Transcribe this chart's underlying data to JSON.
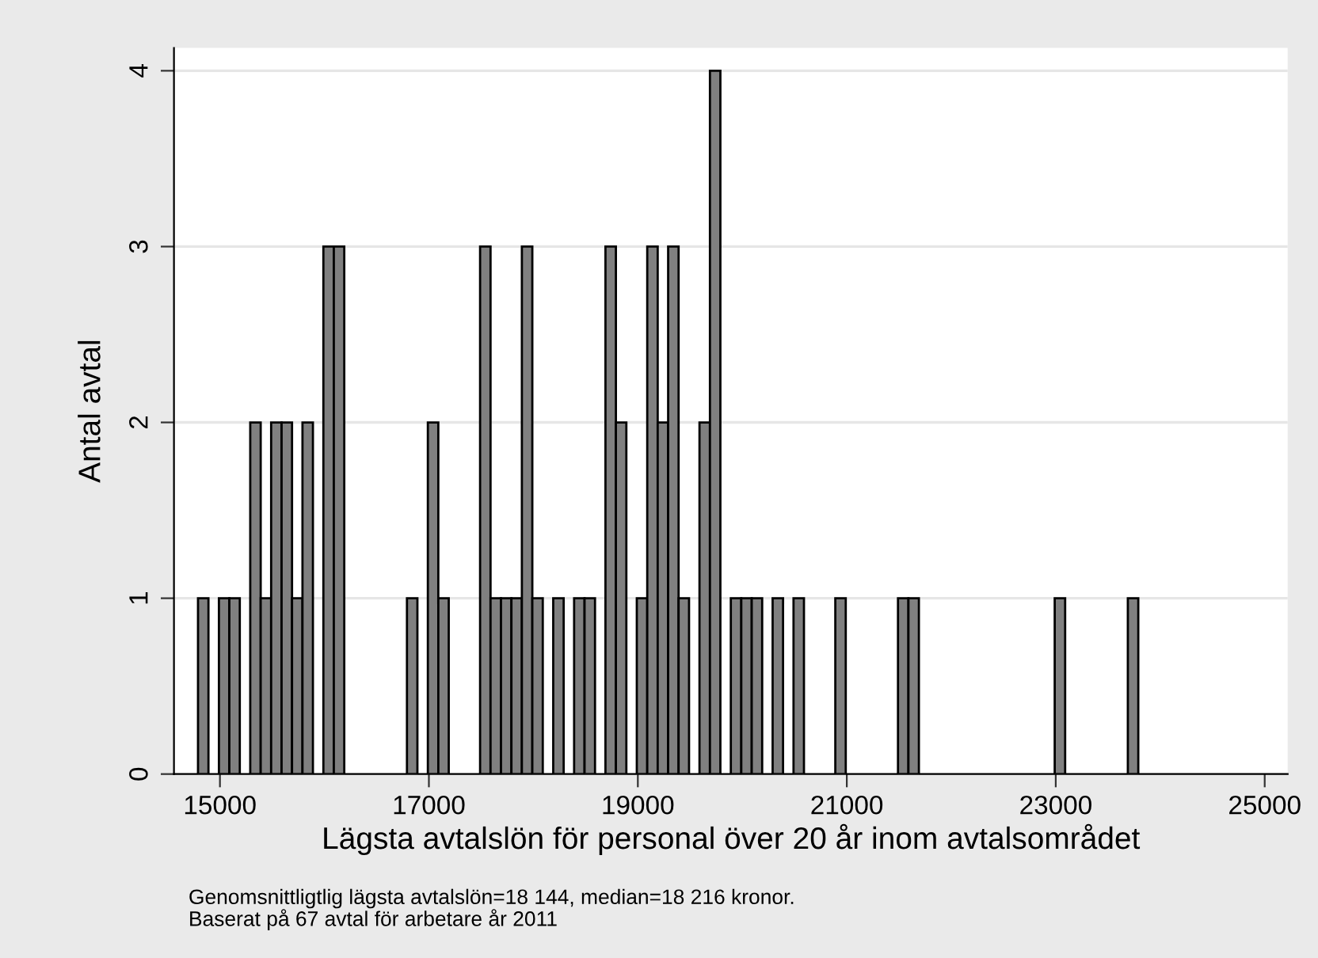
{
  "chart_data": {
    "type": "histogram",
    "xlabel": "Lägsta avtalslön för personal över 20 år inom avtalsområdet",
    "ylabel": "Antal avtal",
    "bins": [
      14790,
      14890,
      14990,
      15090,
      15190,
      15290,
      15390,
      15490,
      15590,
      15690,
      15790,
      15890,
      15990,
      16090,
      16190,
      16290,
      16390,
      16490,
      16590,
      16690,
      16790,
      16890,
      16990,
      17090,
      17190,
      17290,
      17390,
      17490,
      17590,
      17690,
      17790,
      17890,
      17990,
      18090,
      18190,
      18290,
      18390,
      18490,
      18590,
      18690,
      18790,
      18890,
      18990,
      19090,
      19190,
      19290,
      19390,
      19490,
      19590,
      19690,
      19790,
      19890,
      19990,
      20090,
      20190,
      20290,
      20390,
      20490,
      20590,
      20690,
      20790,
      20890,
      20990,
      21090,
      21190,
      21290,
      21390,
      21490,
      21590,
      21690,
      21790,
      21890,
      21990,
      22090,
      22190,
      22290,
      22390,
      22490,
      22590,
      22690,
      22790,
      22890,
      22990,
      23090,
      23190,
      23290,
      23390,
      23490,
      23590,
      23690,
      23790
    ],
    "values": [
      1,
      0,
      1,
      1,
      0,
      2,
      1,
      2,
      2,
      1,
      2,
      0,
      3,
      3,
      0,
      0,
      0,
      0,
      0,
      0,
      1,
      0,
      2,
      1,
      0,
      0,
      0,
      3,
      1,
      1,
      1,
      3,
      1,
      0,
      1,
      0,
      1,
      1,
      0,
      3,
      2,
      0,
      1,
      3,
      2,
      3,
      1,
      0,
      2,
      4,
      0,
      1,
      1,
      1,
      0,
      1,
      0,
      1,
      0,
      0,
      0,
      1,
      0,
      0,
      0,
      0,
      0,
      1,
      1,
      0,
      0,
      0,
      0,
      0,
      0,
      0,
      0,
      0,
      0,
      0,
      0,
      0,
      1,
      0,
      0,
      0,
      0,
      0,
      0,
      1
    ],
    "color": "#808080",
    "xlim": [
      14560,
      25220
    ],
    "xticks": [
      15000,
      17000,
      19000,
      21000,
      23000,
      25000
    ],
    "ylim": [
      0,
      4.13
    ],
    "yticks": [
      0,
      1,
      2,
      3,
      4
    ],
    "grid": "y",
    "annotations": [
      "Genomsnittligtlig lägsta avtalslön=18 144, median=18 216 kronor.",
      "Baserat på 67 avtal för arbetare år 2011"
    ]
  }
}
